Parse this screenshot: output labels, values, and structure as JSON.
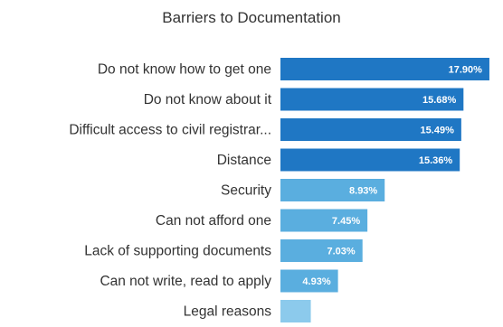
{
  "chart_data": {
    "type": "bar",
    "orientation": "horizontal",
    "title": "Barriers to Documentation",
    "xlabel": "",
    "ylabel": "",
    "categories": [
      "Do not know how to get one",
      "Do not know about it",
      "Difficult access to civil registrar...",
      "Distance",
      "Security",
      "Can not afford one",
      "Lack of supporting documents",
      "Can not write, read to apply",
      "Legal reasons"
    ],
    "values": [
      17.9,
      15.68,
      15.49,
      15.36,
      8.93,
      7.45,
      7.03,
      4.93,
      2.6
    ],
    "value_labels": [
      "17.90%",
      "15.68%",
      "15.49%",
      "15.36%",
      "8.93%",
      "7.45%",
      "7.03%",
      "4.93%",
      ""
    ],
    "xlim": [
      0,
      18.6
    ],
    "grid": false,
    "legend": "none",
    "colors": {
      "dark": "#1f77c4",
      "light": "#5aaedf",
      "lighter": "#8ccaec",
      "label": "#333333",
      "value_text": "#ffffff"
    }
  }
}
